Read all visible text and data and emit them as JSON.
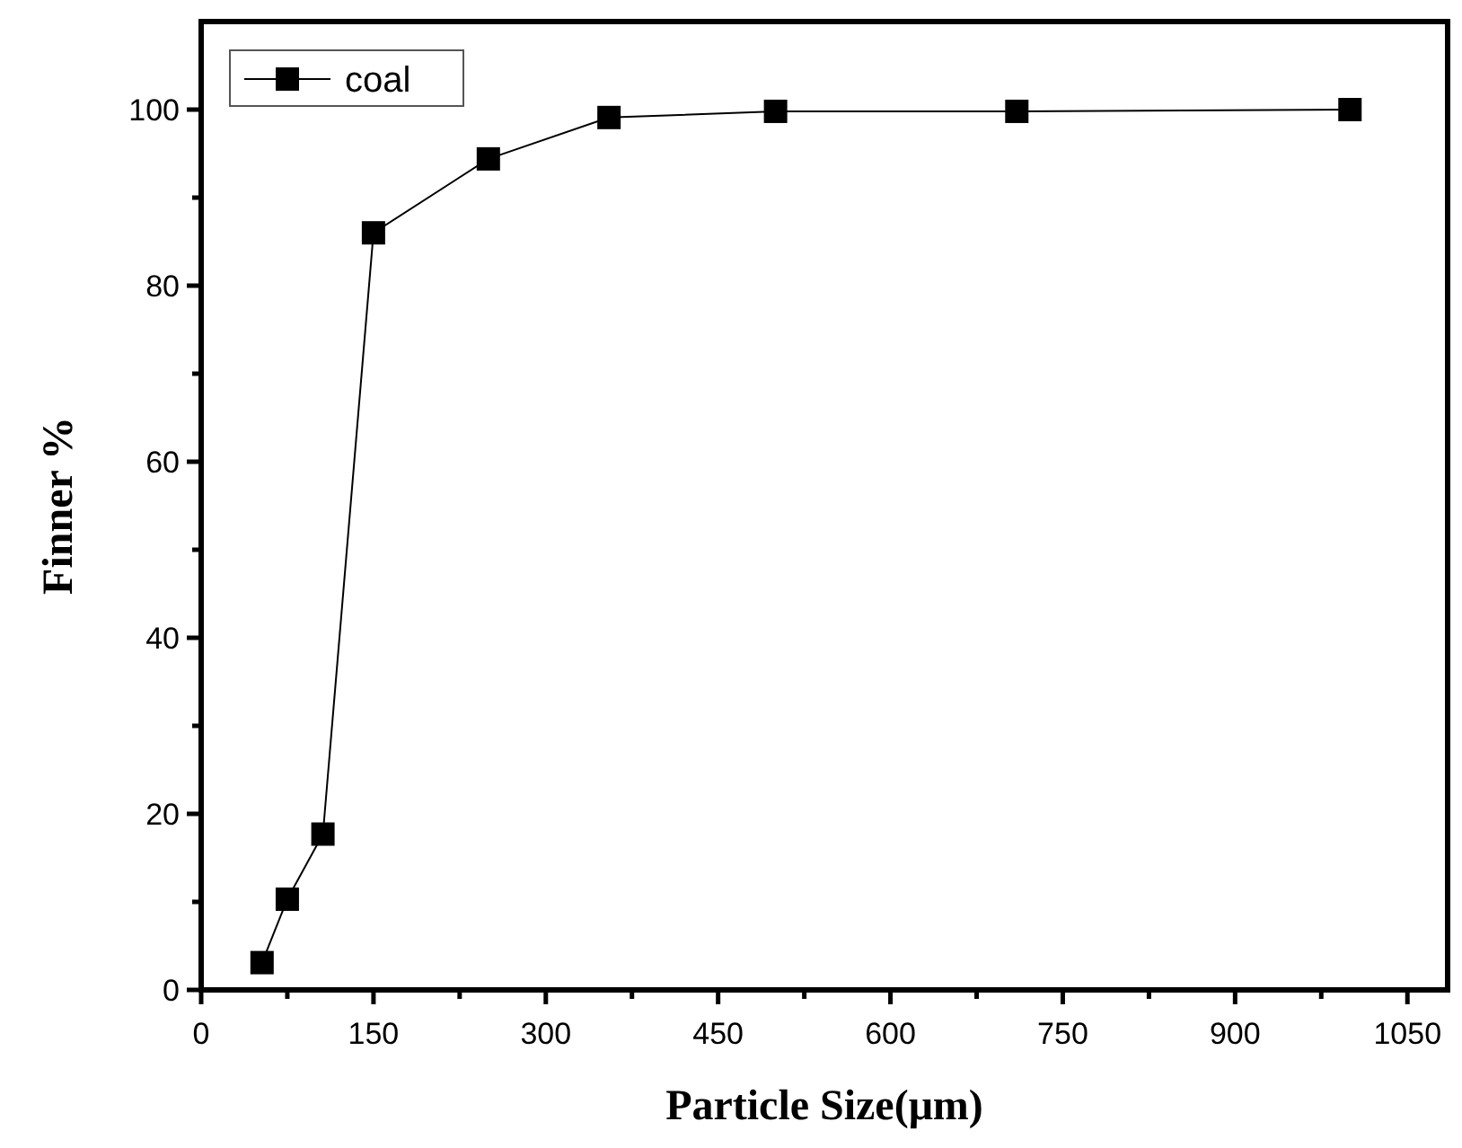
{
  "chart_data": {
    "type": "line",
    "xlabel": "Particle Size(μm)",
    "ylabel": "Finner %",
    "x": [
      53,
      75,
      106,
      150,
      250,
      355,
      500,
      710,
      1000
    ],
    "series": [
      {
        "name": "coal",
        "color": "#000000",
        "values": [
          3.1,
          10.3,
          17.7,
          86.0,
          94.4,
          99.1,
          99.8,
          99.8,
          100
        ]
      }
    ],
    "xlim": [
      0,
      1085
    ],
    "xticks": [
      0,
      {
        "value": 75,
        "label": null
      },
      150,
      {
        "value": 225,
        "label": null
      },
      300,
      {
        "value": 375,
        "label": null
      },
      450,
      {
        "value": 525,
        "label": null
      },
      600,
      {
        "value": 675,
        "label": null
      },
      750,
      {
        "value": 825,
        "label": null
      },
      900,
      {
        "value": 975,
        "label": null
      },
      1050
    ],
    "ylim": [
      0,
      110
    ],
    "yticks": [
      0,
      {
        "value": 10,
        "label": null
      },
      20,
      {
        "value": 30,
        "label": null
      },
      40,
      {
        "value": 50,
        "label": null
      },
      60,
      {
        "value": 70,
        "label": null
      },
      80,
      {
        "value": 90,
        "label": null
      },
      100
    ],
    "grid": false,
    "legend": "top left",
    "marker": "square",
    "line_style": "solid"
  }
}
